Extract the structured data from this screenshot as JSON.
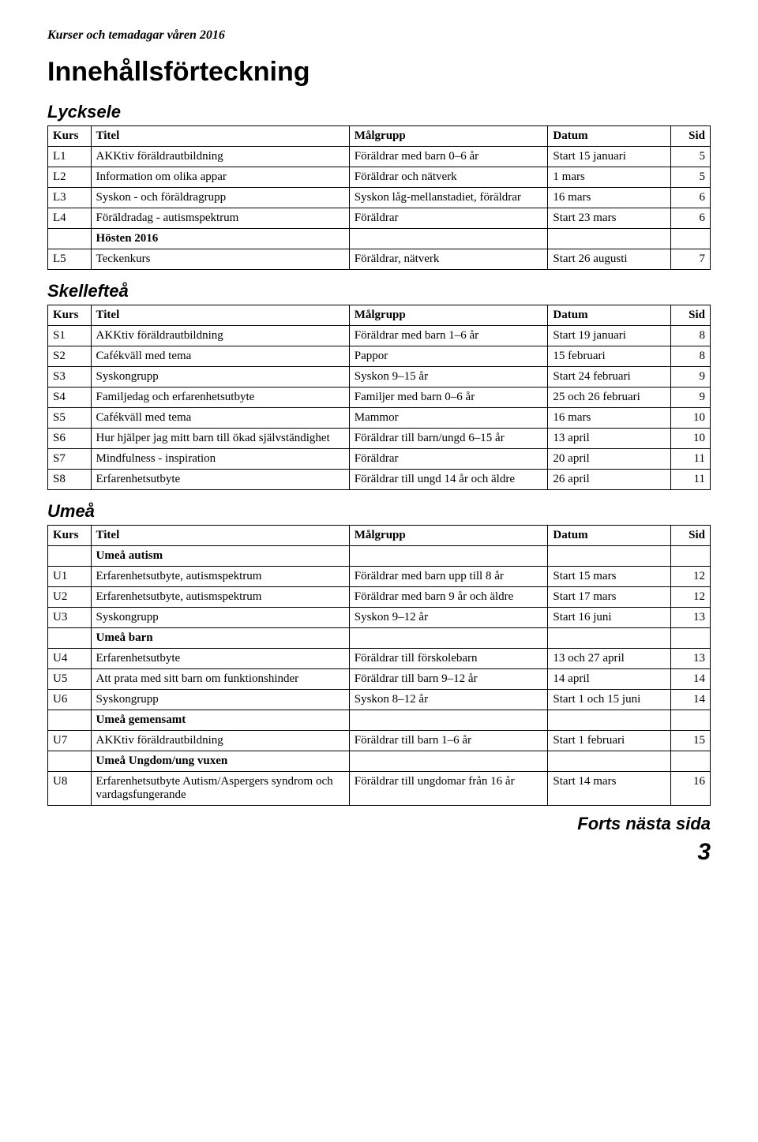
{
  "header": "Kurser och temadagar våren 2016",
  "title": "Innehållsförteckning",
  "columns": {
    "kurs": "Kurs",
    "titel": "Titel",
    "malgrupp": "Målgrupp",
    "datum": "Datum",
    "sid": "Sid"
  },
  "sections": {
    "lycksele": {
      "title": "Lycksele",
      "rows": [
        {
          "kurs": "L1",
          "titel": "AKKtiv föräldrautbildning",
          "malgrupp": "Föräldrar med barn 0–6 år",
          "datum": "Start 15 januari",
          "sid": "5"
        },
        {
          "kurs": "L2",
          "titel": "Information om olika appar",
          "malgrupp": "Föräldrar och nätverk",
          "datum": "1 mars",
          "sid": "5"
        },
        {
          "kurs": "L3",
          "titel": "Syskon - och föräldragrupp",
          "malgrupp": "Syskon låg-mellanstadiet, föräldrar",
          "datum": "16 mars",
          "sid": "6"
        },
        {
          "kurs": "L4",
          "titel": "Föräldradag - autismspektrum",
          "malgrupp": "Föräldrar",
          "datum": "Start 23 mars",
          "sid": "6"
        },
        {
          "kurs": "",
          "titel_bold": "Hösten 2016",
          "malgrupp": "",
          "datum": "",
          "sid": ""
        },
        {
          "kurs": "L5",
          "titel": "Teckenkurs",
          "malgrupp": "Föräldrar, nätverk",
          "datum": "Start 26 augusti",
          "sid": "7"
        }
      ]
    },
    "skelleftea": {
      "title": "Skellefteå",
      "rows": [
        {
          "kurs": "S1",
          "titel": "AKKtiv föräldrautbildning",
          "malgrupp": "Föräldrar med barn 1–6 år",
          "datum": "Start 19 januari",
          "sid": "8"
        },
        {
          "kurs": "S2",
          "titel": "Cafékväll med tema",
          "malgrupp": "Pappor",
          "datum": "15 februari",
          "sid": "8"
        },
        {
          "kurs": "S3",
          "titel": "Syskongrupp",
          "malgrupp": "Syskon 9–15 år",
          "datum": "Start 24 februari",
          "sid": "9"
        },
        {
          "kurs": "S4",
          "titel": "Familjedag och erfarenhetsutbyte",
          "malgrupp": "Familjer med barn 0–6 år",
          "datum": "25 och 26 februari",
          "sid": "9"
        },
        {
          "kurs": "S5",
          "titel": "Cafékväll med tema",
          "malgrupp": "Mammor",
          "datum": "16 mars",
          "sid": "10"
        },
        {
          "kurs": "S6",
          "titel": "Hur hjälper jag mitt barn till ökad självständighet",
          "malgrupp": "Föräldrar till barn/ungd 6–15 år",
          "datum": "13 april",
          "sid": "10"
        },
        {
          "kurs": "S7",
          "titel": "Mindfulness - inspiration",
          "malgrupp": "Föräldrar",
          "datum": "20 april",
          "sid": "11"
        },
        {
          "kurs": "S8",
          "titel": "Erfarenhetsutbyte",
          "malgrupp": "Föräldrar till ungd 14 år och äldre",
          "datum": "26 april",
          "sid": "11"
        }
      ]
    },
    "umea": {
      "title": "Umeå",
      "rows": [
        {
          "kurs": "",
          "titel_bold": "Umeå autism",
          "malgrupp": "",
          "datum": "",
          "sid": ""
        },
        {
          "kurs": "U1",
          "titel": "Erfarenhetsutbyte, autismspektrum",
          "malgrupp": "Föräldrar med barn upp till 8 år",
          "datum": "Start 15 mars",
          "sid": "12"
        },
        {
          "kurs": "U2",
          "titel": "Erfarenhetsutbyte, autismspektrum",
          "malgrupp": "Föräldrar med barn 9 år och äldre",
          "datum": "Start 17 mars",
          "sid": "12"
        },
        {
          "kurs": "U3",
          "titel": "Syskongrupp",
          "malgrupp": "Syskon 9–12 år",
          "datum": "Start 16 juni",
          "sid": "13"
        },
        {
          "kurs": "",
          "titel_bold": "Umeå barn",
          "malgrupp": "",
          "datum": "",
          "sid": ""
        },
        {
          "kurs": "U4",
          "titel": "Erfarenhetsutbyte",
          "malgrupp": "Föräldrar till förskolebarn",
          "datum": "13 och 27 april",
          "sid": "13"
        },
        {
          "kurs": "U5",
          "titel": "Att prata med sitt barn om funktionshinder",
          "malgrupp": "Föräldrar till barn 9–12 år",
          "datum": "14 april",
          "sid": "14"
        },
        {
          "kurs": "U6",
          "titel": "Syskongrupp",
          "malgrupp": "Syskon 8–12 år",
          "datum": "Start 1 och 15 juni",
          "sid": "14"
        },
        {
          "kurs": "",
          "titel_bold": "Umeå gemensamt",
          "malgrupp": "",
          "datum": "",
          "sid": ""
        },
        {
          "kurs": "U7",
          "titel": "AKKtiv föräldrautbildning",
          "malgrupp": "Föräldrar till barn 1–6 år",
          "datum": "Start 1 februari",
          "sid": "15"
        },
        {
          "kurs": "",
          "titel_bold": "Umeå Ungdom/ung vuxen",
          "malgrupp": "",
          "datum": "",
          "sid": ""
        },
        {
          "kurs": "U8",
          "titel": "Erfarenhetsutbyte Autism/Aspergers syndrom och vardagsfungerande",
          "malgrupp": "Föräldrar till ungdomar från 16 år",
          "datum": "Start 14 mars",
          "sid": "16"
        }
      ]
    }
  },
  "footer": "Forts nästa sida",
  "page": "3",
  "style": {
    "body_font": "Times New Roman",
    "heading_font": "Arial",
    "background": "#ffffff",
    "text": "#000000",
    "border": "#000000",
    "title_size_pt": 26,
    "section_size_pt": 17,
    "body_size_pt": 11
  }
}
